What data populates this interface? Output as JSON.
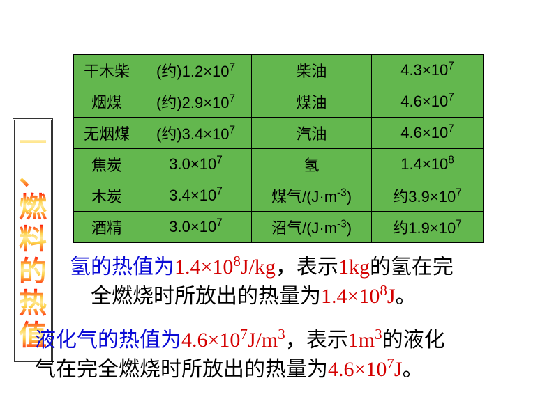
{
  "heading": {
    "c1": "一",
    "c2": "、",
    "c3": "燃",
    "c4": "料",
    "c5": "的",
    "c6": "热",
    "c7": "值"
  },
  "table": {
    "rows": [
      {
        "a": "干木柴",
        "b_pre": "(约)1.2×10",
        "b_sup": "7",
        "c": "柴油",
        "d_pre": "4.3×10",
        "d_sup": "7"
      },
      {
        "a": "烟煤",
        "b_pre": "(约)2.9×10",
        "b_sup": "7",
        "c": "煤油",
        "d_pre": "4.6×10",
        "d_sup": "7"
      },
      {
        "a": "无烟煤",
        "b_pre": "(约)3.4×10",
        "b_sup": "7",
        "c": "汽油",
        "d_pre": "4.6×10",
        "d_sup": "7"
      },
      {
        "a": "焦炭",
        "b_pre": "3.0×10",
        "b_sup": "7",
        "c": "氢",
        "d_pre": "1.4×10",
        "d_sup": "8"
      },
      {
        "a": "木炭",
        "b_pre": "3.4×10",
        "b_sup": "7",
        "c_pre": "煤气/(J·m",
        "c_sup": "-3",
        "c_post": ")",
        "d_pre": "约3.9×10",
        "d_sup": "7"
      },
      {
        "a": "酒精",
        "b_pre": "3.0×10",
        "b_sup": "7",
        "c_pre": "沼气/(J·m",
        "c_sup": "-3",
        "c_post": ")",
        "d_pre": "约1.9×10",
        "d_sup": "7"
      }
    ]
  },
  "para1": {
    "t1": "氢的热值为",
    "t2": "1.4×10",
    "t2sup": "8",
    "t2b": "J/kg",
    "t3": "，表示",
    "t4": "1kg",
    "t5": "的氢在完",
    "t6": "全燃烧时所放出的热量为",
    "t7": "1.4×10",
    "t7sup": "8",
    "t7b": "J",
    "t8": "。"
  },
  "para2": {
    "t1": "液化气的热值为",
    "t2": "4.6×10",
    "t2sup": "7",
    "t2b": "J/m",
    "t2bsup": "3",
    "t3": "，表示",
    "t4": "1m",
    "t4sup": "3",
    "t5": "的液化",
    "t6": "气在完全燃烧时所放出的热量为",
    "t7": "4.6×10",
    "t7sup": "7",
    "t7b": "J",
    "t8": "。"
  },
  "colors": {
    "table_bg": "#63b74e",
    "red": "#d40000",
    "blue": "#0b0bd6"
  }
}
